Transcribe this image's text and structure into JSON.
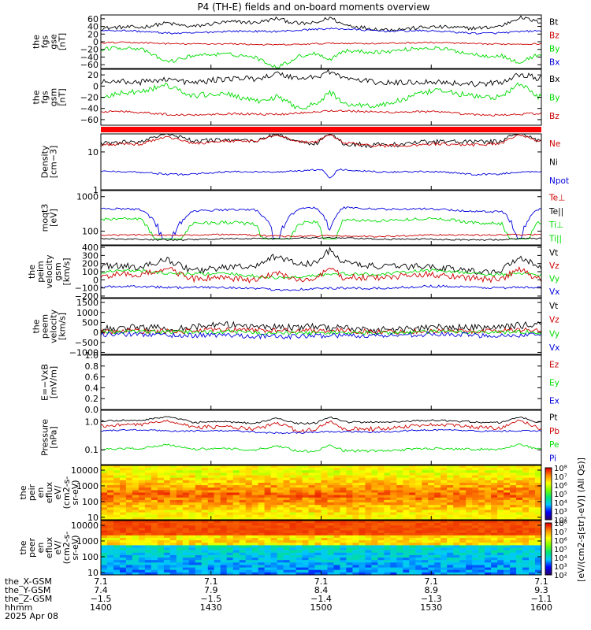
{
  "title": "P4 (TH-E) fields and on-board moments overview",
  "colors": {
    "black": "#000000",
    "red": "#cc0000",
    "green": "#00dd00",
    "blue": "#0000dd",
    "bar": "#ff0000"
  },
  "panels": [
    {
      "id": "fgs-gse",
      "ylabel": [
        "the",
        "fgs",
        "gse",
        "[nT]"
      ],
      "ticks": [
        "60",
        "40",
        "20",
        "0",
        "−20",
        "−40",
        "−60"
      ],
      "tick_values": [
        60,
        40,
        20,
        0,
        -20,
        -40,
        -60
      ],
      "ylim": [
        -70,
        70
      ],
      "legend": [
        {
          "label": "Bt",
          "color": "black"
        },
        {
          "label": "Bz",
          "color": "red"
        },
        {
          "label": "By",
          "color": "green"
        },
        {
          "label": "Bx",
          "color": "blue"
        }
      ]
    },
    {
      "id": "fgs-gsm",
      "ylabel": [
        "the",
        "fgs",
        "gsm",
        "[nT]"
      ],
      "ticks": [
        "20",
        "0",
        "−20",
        "−40",
        "−60"
      ],
      "tick_values": [
        20,
        0,
        -20,
        -40,
        -60
      ],
      "ylim": [
        -70,
        30
      ],
      "legend": [
        {
          "label": "Bx",
          "color": "black"
        },
        {
          "label": "By",
          "color": "green"
        },
        {
          "label": "Bz",
          "color": "red"
        }
      ]
    },
    {
      "id": "density",
      "ylabel": [
        "Density",
        "[cm−3]"
      ],
      "ticks": [
        "10",
        "1"
      ],
      "tick_values": [
        10,
        1
      ],
      "log": true,
      "ylim": [
        1,
        30
      ],
      "legend": [
        {
          "label": "Ne",
          "color": "red"
        },
        {
          "label": "Ni",
          "color": "black"
        },
        {
          "label": "Npot",
          "color": "blue"
        }
      ]
    },
    {
      "id": "temperature",
      "ylabel": [
        "moqt3",
        "[eV]"
      ],
      "ticks": [
        "1000",
        "100"
      ],
      "tick_values": [
        1000,
        100
      ],
      "log": true,
      "ylim": [
        40,
        1500
      ],
      "legend": [
        {
          "label": "Te⊥",
          "color": "red"
        },
        {
          "label": "Te||",
          "color": "black"
        },
        {
          "label": "Ti⊥",
          "color": "green"
        },
        {
          "label": "Ti||",
          "color": "green"
        }
      ]
    },
    {
      "id": "peim-velocity",
      "ylabel": [
        "the",
        "peim",
        "velocity",
        "gsm",
        "[km/s]"
      ],
      "ticks": [
        "400",
        "300",
        "200",
        "100",
        "0",
        "−100",
        "−200"
      ],
      "tick_values": [
        400,
        300,
        200,
        100,
        0,
        -100,
        -200
      ],
      "ylim": [
        -220,
        420
      ],
      "legend": [
        {
          "label": "Vt",
          "color": "black"
        },
        {
          "label": "Vz",
          "color": "red"
        },
        {
          "label": "Vy",
          "color": "green"
        },
        {
          "label": "Vx",
          "color": "blue"
        }
      ]
    },
    {
      "id": "peem-velocity",
      "ylabel": [
        "the",
        "peem",
        "velocity",
        "[km/s]"
      ],
      "ticks": [
        "1500",
        "1000",
        "500",
        "0",
        "−500",
        "−1000"
      ],
      "tick_values": [
        1500,
        1000,
        500,
        0,
        -500,
        -1000
      ],
      "ylim": [
        -1100,
        1700
      ],
      "legend": [
        {
          "label": "Vt",
          "color": "black"
        },
        {
          "label": "Vz",
          "color": "red"
        },
        {
          "label": "Vy",
          "color": "green"
        },
        {
          "label": "Vx",
          "color": "blue"
        }
      ]
    },
    {
      "id": "efield",
      "ylabel": [
        "E=−VxB",
        "[mV/m]"
      ],
      "ticks": [
        "1.0",
        "0.8",
        "0.6",
        "0.4",
        "0.2",
        "0.0"
      ],
      "tick_values": [
        1.0,
        0.8,
        0.6,
        0.4,
        0.2,
        0.0
      ],
      "ylim": [
        0,
        1
      ],
      "legend": [
        {
          "label": "Ez",
          "color": "red"
        },
        {
          "label": "Ey",
          "color": "green"
        },
        {
          "label": "Ex",
          "color": "blue"
        }
      ]
    },
    {
      "id": "pressure",
      "ylabel": [
        "Pressure",
        "[nPa]"
      ],
      "ticks": [
        "1.0",
        "0.1"
      ],
      "tick_values": [
        1.0,
        0.1
      ],
      "log": true,
      "ylim": [
        0.03,
        2.5
      ],
      "legend": [
        {
          "label": "Pt",
          "color": "black"
        },
        {
          "label": "Pb",
          "color": "red"
        },
        {
          "label": "Pe",
          "color": "green"
        },
        {
          "label": "Pi",
          "color": "blue"
        }
      ]
    },
    {
      "id": "peir-spec",
      "ylabel": [
        "the",
        "peir",
        "en",
        "eflux",
        "eV/",
        "(cm2-s-",
        "sr-eV)"
      ],
      "ticks": [
        "10000",
        "1000",
        "100",
        "10"
      ],
      "tick_values": [
        10000,
        1000,
        100,
        10
      ],
      "log": true,
      "ylim": [
        7,
        20000
      ],
      "spectrogram": "ion"
    },
    {
      "id": "peer-spec",
      "ylabel": [
        "the",
        "peer",
        "en",
        "eflux",
        "eV/",
        "(cm2-s-",
        "sr-eV)"
      ],
      "ticks": [
        "10000",
        "1000",
        "100",
        "10"
      ],
      "tick_values": [
        10000,
        1000,
        100,
        10
      ],
      "log": true,
      "ylim": [
        7,
        20000
      ],
      "spectrogram": "electron"
    }
  ],
  "colorbar": {
    "ion_ticks": [
      "10⁸",
      "10⁷",
      "10⁶",
      "10⁵",
      "10⁴",
      "10³",
      "10²"
    ],
    "electron_ticks": [
      "10⁸",
      "10⁷",
      "10⁶",
      "10⁵",
      "10⁴",
      "10³",
      "10²"
    ],
    "label": "[eV/(cm2-s[str]-eV)] (All Qs)]"
  },
  "xaxis": {
    "row_labels": [
      "the_X-GSM",
      "the_Y-GSM",
      "the_Z-GSM",
      "hhmm",
      "2025 Apr 08"
    ],
    "ticks": [
      {
        "x": "7.1",
        "y": "7.4",
        "z": "−1.5",
        "t": "1400"
      },
      {
        "x": "7.1",
        "y": "7.9",
        "z": "−1.5",
        "t": "1430"
      },
      {
        "x": "7.1",
        "y": "8.4",
        "z": "−1.4",
        "t": "1500"
      },
      {
        "x": "7.1",
        "y": "8.9",
        "z": "−1.3",
        "t": "1530"
      },
      {
        "x": "7.1",
        "y": "9.3",
        "z": "−1.1",
        "t": "1600"
      }
    ]
  }
}
